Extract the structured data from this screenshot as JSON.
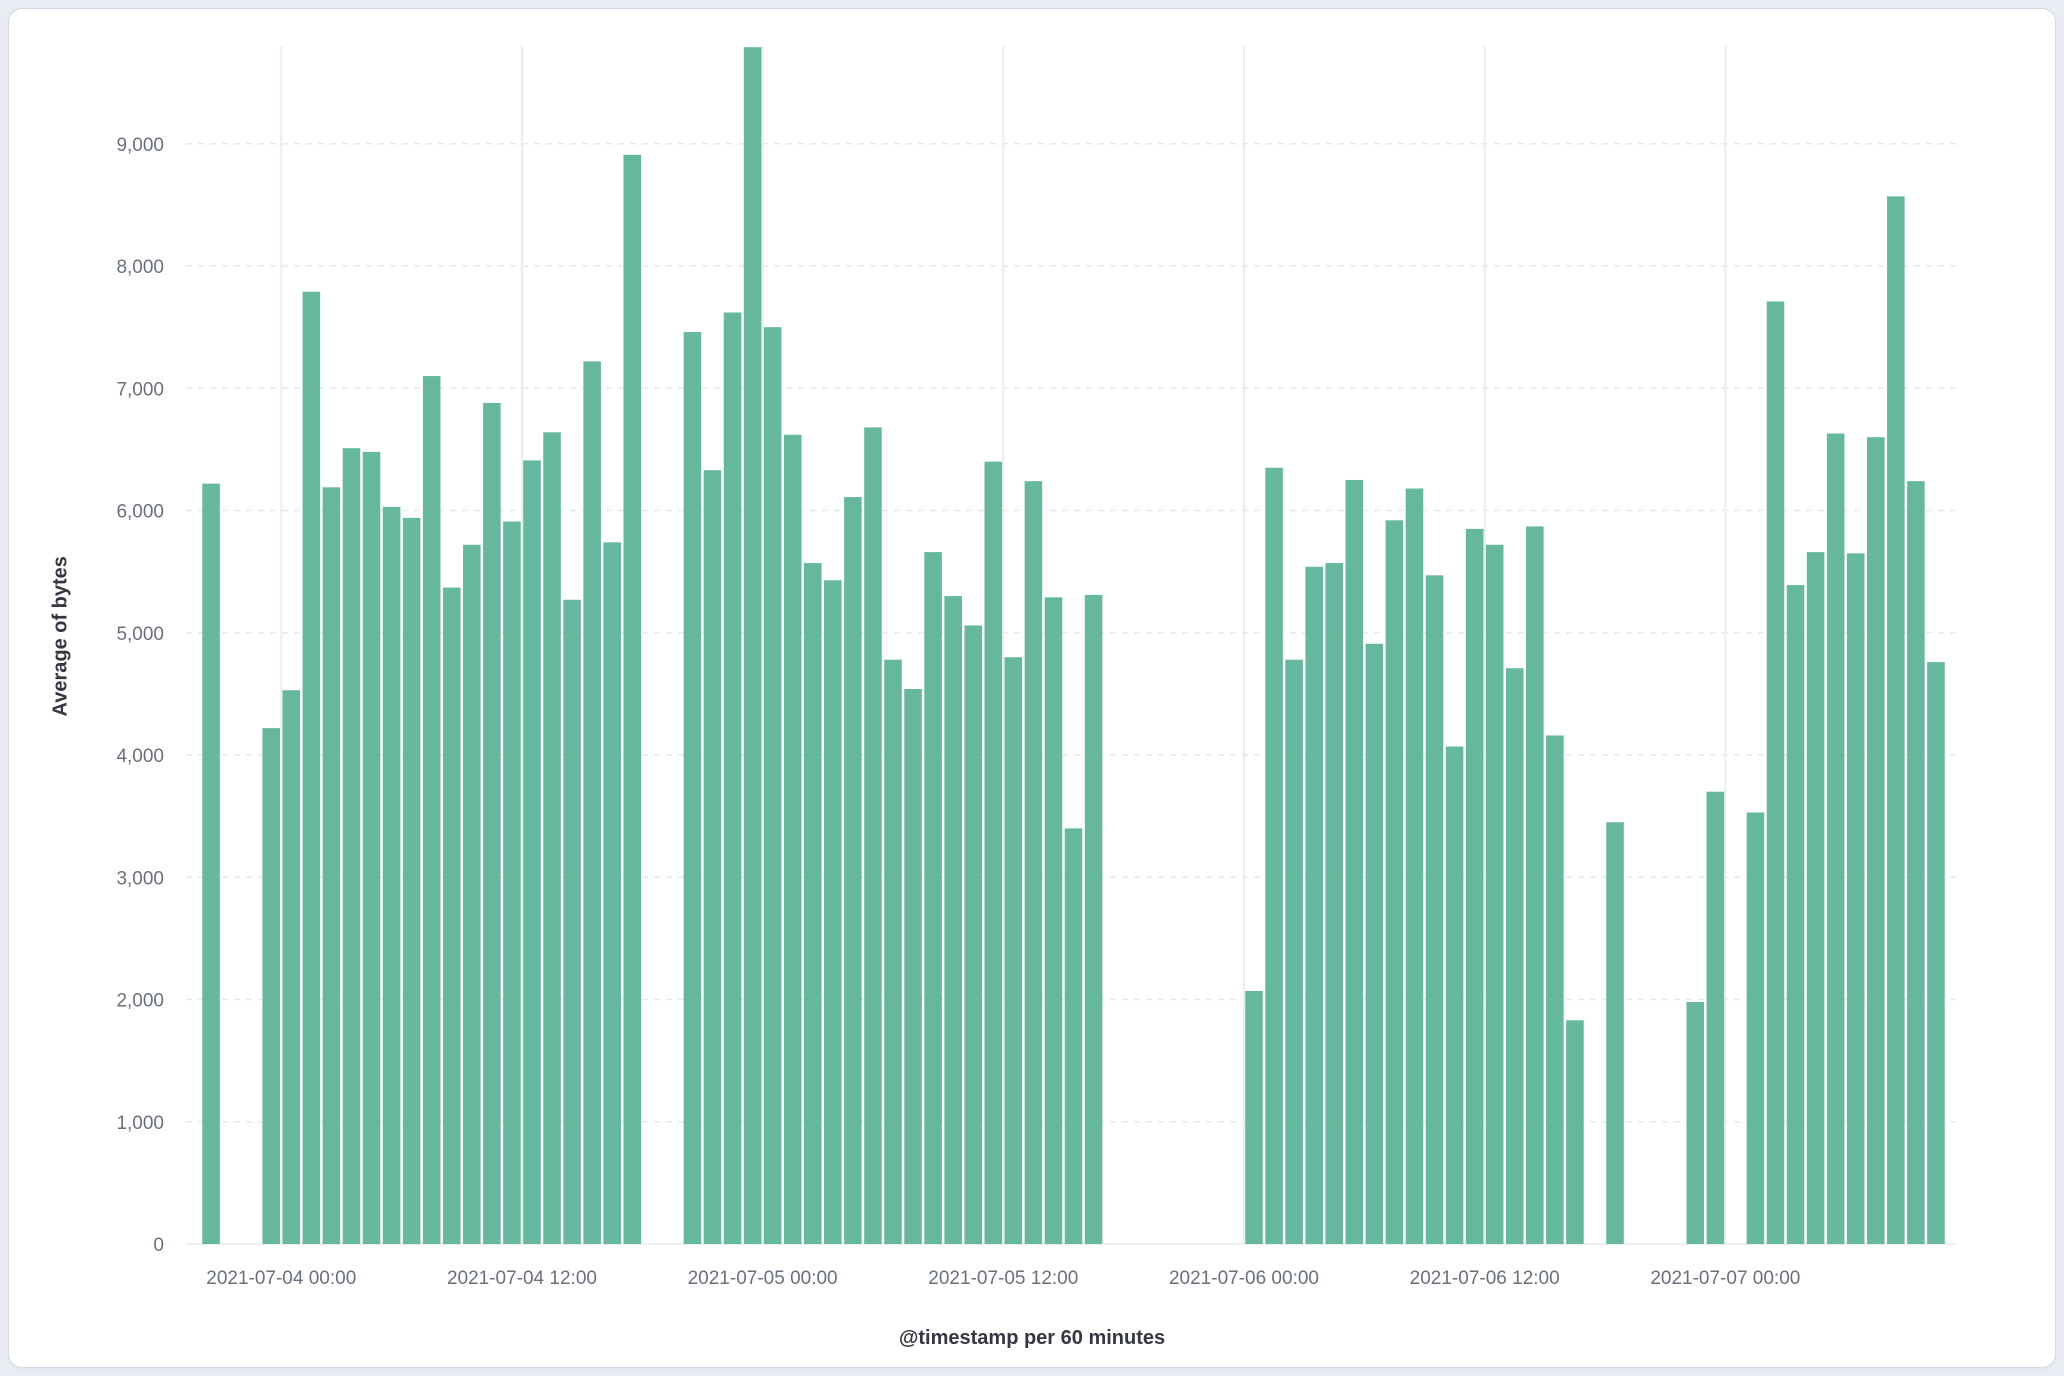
{
  "chart_data": {
    "type": "bar",
    "title": "",
    "xlabel": "@timestamp per 60 minutes",
    "ylabel": "Average of bytes",
    "ylim": [
      0,
      9800
    ],
    "y_ticks": [
      0,
      1000,
      2000,
      3000,
      4000,
      5000,
      6000,
      7000,
      8000,
      9000
    ],
    "grid": "on",
    "legend": "none",
    "bar_interval_minutes": 60,
    "colors": {
      "bar": "#65b79e",
      "h_grid": "#e6e9ee",
      "v_grid": "#e9edf2",
      "tick_text": "#69707d",
      "axis_title": "#343741",
      "baseline": "#e6e9ee"
    },
    "x_axis": {
      "start": "2021-07-03 19:15",
      "end": "2021-07-07 11:30",
      "ticks": [
        {
          "t": "2021-07-04 00:00",
          "label": "2021-07-04 00:00"
        },
        {
          "t": "2021-07-04 12:00",
          "label": "2021-07-04 12:00"
        },
        {
          "t": "2021-07-05 00:00",
          "label": "2021-07-05 00:00"
        },
        {
          "t": "2021-07-05 12:00",
          "label": "2021-07-05 12:00"
        },
        {
          "t": "2021-07-06 00:00",
          "label": "2021-07-06 00:00"
        },
        {
          "t": "2021-07-06 12:00",
          "label": "2021-07-06 12:00"
        },
        {
          "t": "2021-07-07 00:00",
          "label": "2021-07-07 00:00"
        }
      ]
    },
    "bars": [
      {
        "t": "2021-07-03 20:00",
        "v": 6220
      },
      {
        "t": "2021-07-03 23:00",
        "v": 4220
      },
      {
        "t": "2021-07-04 00:00",
        "v": 4530
      },
      {
        "t": "2021-07-04 01:00",
        "v": 7790
      },
      {
        "t": "2021-07-04 02:00",
        "v": 6190
      },
      {
        "t": "2021-07-04 03:00",
        "v": 6510
      },
      {
        "t": "2021-07-04 04:00",
        "v": 6480
      },
      {
        "t": "2021-07-04 05:00",
        "v": 6030
      },
      {
        "t": "2021-07-04 06:00",
        "v": 5940
      },
      {
        "t": "2021-07-04 07:00",
        "v": 7100
      },
      {
        "t": "2021-07-04 08:00",
        "v": 5370
      },
      {
        "t": "2021-07-04 09:00",
        "v": 5720
      },
      {
        "t": "2021-07-04 10:00",
        "v": 6880
      },
      {
        "t": "2021-07-04 11:00",
        "v": 5910
      },
      {
        "t": "2021-07-04 12:00",
        "v": 6410
      },
      {
        "t": "2021-07-04 13:00",
        "v": 6640
      },
      {
        "t": "2021-07-04 14:00",
        "v": 5270
      },
      {
        "t": "2021-07-04 15:00",
        "v": 7220
      },
      {
        "t": "2021-07-04 16:00",
        "v": 5740
      },
      {
        "t": "2021-07-04 17:00",
        "v": 8910
      },
      {
        "t": "2021-07-04 20:00",
        "v": 7460
      },
      {
        "t": "2021-07-04 21:00",
        "v": 6330
      },
      {
        "t": "2021-07-04 22:00",
        "v": 7620
      },
      {
        "t": "2021-07-04 23:00",
        "v": 9790
      },
      {
        "t": "2021-07-05 00:00",
        "v": 7500
      },
      {
        "t": "2021-07-05 01:00",
        "v": 6620
      },
      {
        "t": "2021-07-05 02:00",
        "v": 5570
      },
      {
        "t": "2021-07-05 03:00",
        "v": 5430
      },
      {
        "t": "2021-07-05 04:00",
        "v": 6110
      },
      {
        "t": "2021-07-05 05:00",
        "v": 6680
      },
      {
        "t": "2021-07-05 06:00",
        "v": 4780
      },
      {
        "t": "2021-07-05 07:00",
        "v": 4540
      },
      {
        "t": "2021-07-05 08:00",
        "v": 5660
      },
      {
        "t": "2021-07-05 09:00",
        "v": 5300
      },
      {
        "t": "2021-07-05 10:00",
        "v": 5060
      },
      {
        "t": "2021-07-05 11:00",
        "v": 6400
      },
      {
        "t": "2021-07-05 12:00",
        "v": 4800
      },
      {
        "t": "2021-07-05 13:00",
        "v": 6240
      },
      {
        "t": "2021-07-05 14:00",
        "v": 5290
      },
      {
        "t": "2021-07-05 15:00",
        "v": 3400
      },
      {
        "t": "2021-07-05 16:00",
        "v": 5310
      },
      {
        "t": "2021-07-06 00:00",
        "v": 2070
      },
      {
        "t": "2021-07-06 01:00",
        "v": 6350
      },
      {
        "t": "2021-07-06 02:00",
        "v": 4780
      },
      {
        "t": "2021-07-06 03:00",
        "v": 5540
      },
      {
        "t": "2021-07-06 04:00",
        "v": 5570
      },
      {
        "t": "2021-07-06 05:00",
        "v": 6250
      },
      {
        "t": "2021-07-06 06:00",
        "v": 4910
      },
      {
        "t": "2021-07-06 07:00",
        "v": 5920
      },
      {
        "t": "2021-07-06 08:00",
        "v": 6180
      },
      {
        "t": "2021-07-06 09:00",
        "v": 5470
      },
      {
        "t": "2021-07-06 10:00",
        "v": 4070
      },
      {
        "t": "2021-07-06 11:00",
        "v": 5850
      },
      {
        "t": "2021-07-06 12:00",
        "v": 5720
      },
      {
        "t": "2021-07-06 13:00",
        "v": 4710
      },
      {
        "t": "2021-07-06 14:00",
        "v": 5870
      },
      {
        "t": "2021-07-06 15:00",
        "v": 4160
      },
      {
        "t": "2021-07-06 16:00",
        "v": 1830
      },
      {
        "t": "2021-07-06 18:00",
        "v": 3450
      },
      {
        "t": "2021-07-06 22:00",
        "v": 1980
      },
      {
        "t": "2021-07-06 23:00",
        "v": 3700
      },
      {
        "t": "2021-07-07 01:00",
        "v": 3530
      },
      {
        "t": "2021-07-07 02:00",
        "v": 7710
      },
      {
        "t": "2021-07-07 03:00",
        "v": 5390
      },
      {
        "t": "2021-07-07 04:00",
        "v": 5660
      },
      {
        "t": "2021-07-07 05:00",
        "v": 6630
      },
      {
        "t": "2021-07-07 06:00",
        "v": 5650
      },
      {
        "t": "2021-07-07 07:00",
        "v": 6600
      },
      {
        "t": "2021-07-07 08:00",
        "v": 8570
      },
      {
        "t": "2021-07-07 09:00",
        "v": 6240
      },
      {
        "t": "2021-07-07 10:00",
        "v": 4760
      }
    ]
  }
}
